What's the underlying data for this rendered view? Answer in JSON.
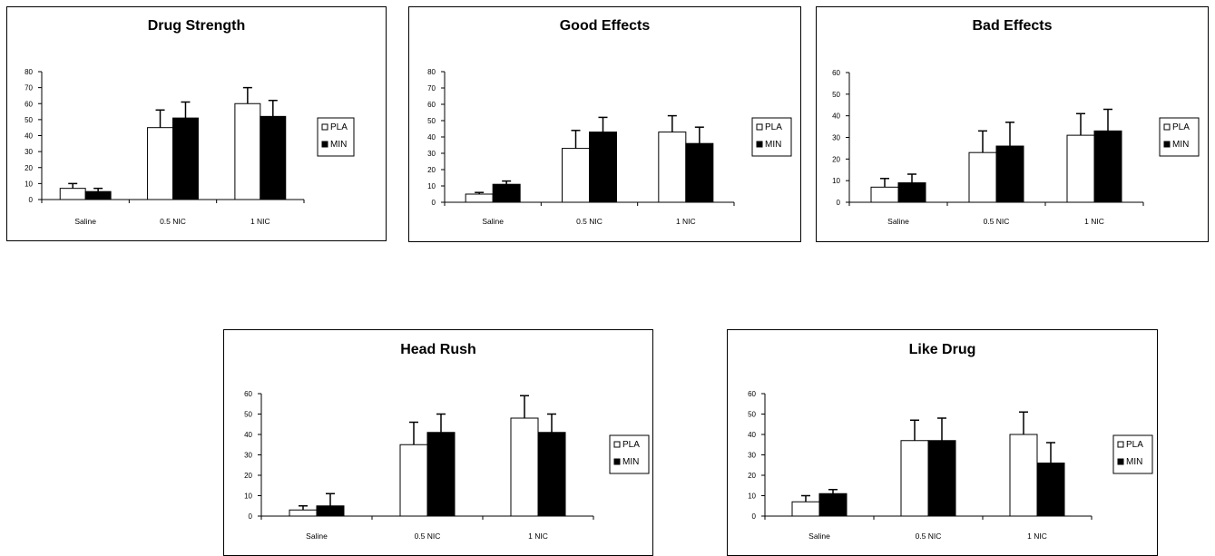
{
  "chart_data": [
    {
      "type": "bar",
      "title": "Drug Strength",
      "categories": [
        "Saline",
        "0.5  NIC",
        "1 NIC"
      ],
      "ylim": [
        0,
        80
      ],
      "yticks": [
        0,
        10,
        20,
        30,
        40,
        50,
        60,
        70,
        80
      ],
      "series": [
        {
          "name": "PLA",
          "values": [
            7,
            45,
            60
          ],
          "errors": [
            3,
            11,
            10
          ],
          "fill": "#ffffff"
        },
        {
          "name": "MIN",
          "values": [
            5,
            51,
            52
          ],
          "errors": [
            2,
            10,
            10
          ],
          "fill": "#000000"
        }
      ],
      "legend": "right",
      "grid": false
    },
    {
      "type": "bar",
      "title": "Good Effects",
      "categories": [
        "Saline",
        "0.5  NIC",
        "1 NIC"
      ],
      "ylim": [
        0,
        80
      ],
      "yticks": [
        0,
        10,
        20,
        30,
        40,
        50,
        60,
        70,
        80
      ],
      "series": [
        {
          "name": "PLA",
          "values": [
            5,
            33,
            43
          ],
          "errors": [
            1,
            11,
            10
          ],
          "fill": "#ffffff"
        },
        {
          "name": "MIN",
          "values": [
            11,
            43,
            36
          ],
          "errors": [
            2,
            9,
            10
          ],
          "fill": "#000000"
        }
      ],
      "legend": "right",
      "grid": false
    },
    {
      "type": "bar",
      "title": "Bad Effects",
      "categories": [
        "Saline",
        "0.5  NIC",
        "1 NIC"
      ],
      "ylim": [
        0,
        60
      ],
      "yticks": [
        0,
        10,
        20,
        30,
        40,
        50,
        60
      ],
      "series": [
        {
          "name": "PLA",
          "values": [
            7,
            23,
            31
          ],
          "errors": [
            4,
            10,
            10
          ],
          "fill": "#ffffff"
        },
        {
          "name": "MIN",
          "values": [
            9,
            26,
            33
          ],
          "errors": [
            4,
            11,
            10
          ],
          "fill": "#000000"
        }
      ],
      "legend": "right",
      "grid": false
    },
    {
      "type": "bar",
      "title": "Head Rush",
      "categories": [
        "Saline",
        "0.5  NIC",
        "1 NIC"
      ],
      "ylim": [
        0,
        60
      ],
      "yticks": [
        0,
        10,
        20,
        30,
        40,
        50,
        60
      ],
      "series": [
        {
          "name": "PLA",
          "values": [
            3,
            35,
            48
          ],
          "errors": [
            2,
            11,
            11
          ],
          "fill": "#ffffff"
        },
        {
          "name": "MIN",
          "values": [
            5,
            41,
            41
          ],
          "errors": [
            6,
            9,
            9
          ],
          "fill": "#000000"
        }
      ],
      "legend": "right",
      "grid": false
    },
    {
      "type": "bar",
      "title": "Like Drug",
      "categories": [
        "Saline",
        "0.5  NIC",
        "1 NIC"
      ],
      "ylim": [
        0,
        60
      ],
      "yticks": [
        0,
        10,
        20,
        30,
        40,
        50,
        60
      ],
      "series": [
        {
          "name": "PLA",
          "values": [
            7,
            37,
            40
          ],
          "errors": [
            3,
            10,
            11
          ],
          "fill": "#ffffff"
        },
        {
          "name": "MIN",
          "values": [
            11,
            37,
            26
          ],
          "errors": [
            2,
            11,
            10
          ],
          "fill": "#000000"
        }
      ],
      "legend": "right",
      "grid": false
    }
  ]
}
